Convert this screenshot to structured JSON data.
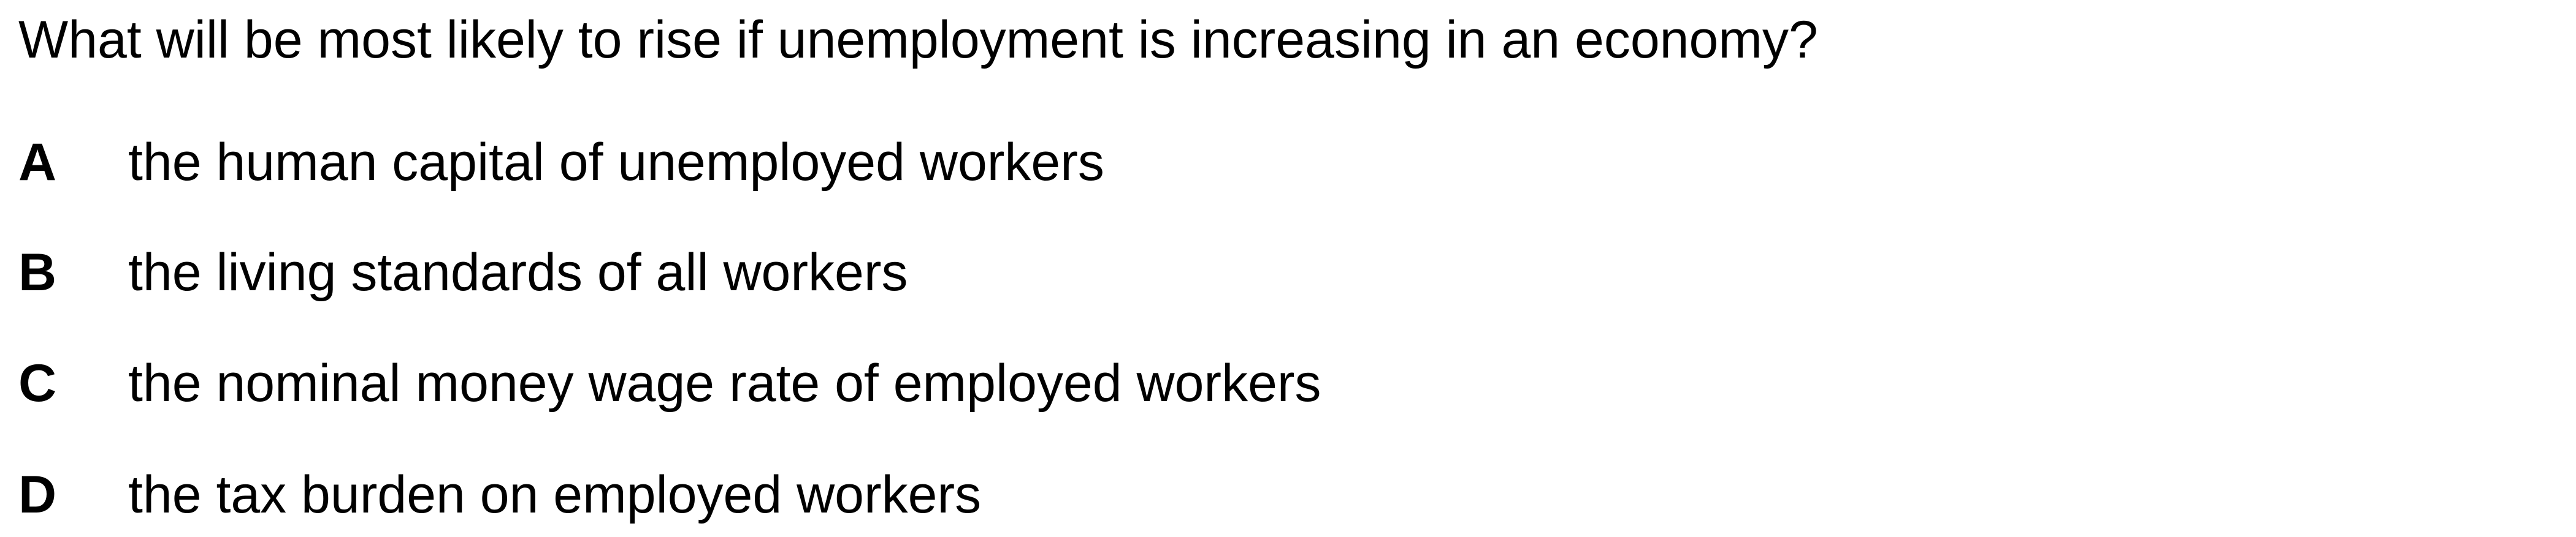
{
  "question": {
    "text": "What will be most likely to rise if unemployment is increasing in an economy?"
  },
  "options": [
    {
      "letter": "A",
      "text": "the human capital of unemployed workers"
    },
    {
      "letter": "B",
      "text": "the living standards of all workers"
    },
    {
      "letter": "C",
      "text": "the nominal money wage rate of employed workers"
    },
    {
      "letter": "D",
      "text": "the tax burden on employed workers"
    }
  ]
}
